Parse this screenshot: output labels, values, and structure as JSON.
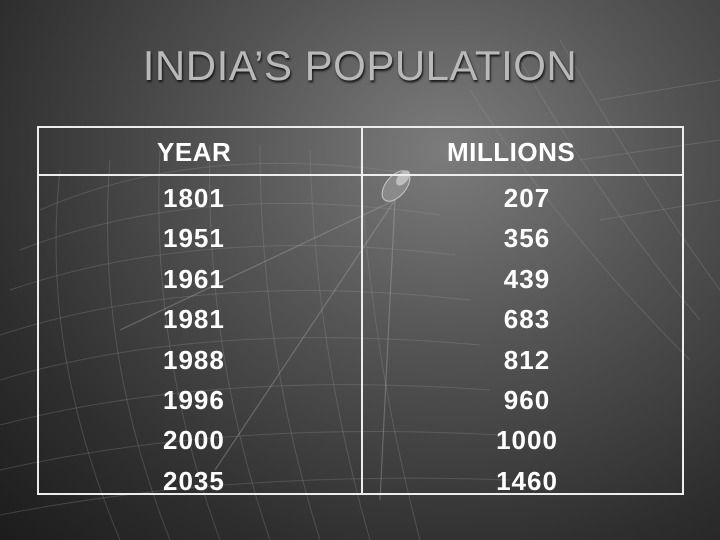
{
  "slide": {
    "title": "INDIA’S POPULATION"
  },
  "table": {
    "headers": {
      "year": "YEAR",
      "millions": "MILLIONS"
    },
    "rows": [
      {
        "year": "1801",
        "millions": "207"
      },
      {
        "year": "1951",
        "millions": "356"
      },
      {
        "year": "1961",
        "millions": "439"
      },
      {
        "year": "1981",
        "millions": "683"
      },
      {
        "year": "1988",
        "millions": "812"
      },
      {
        "year": "1996",
        "millions": "960"
      },
      {
        "year": "2000",
        "millions": "1000"
      },
      {
        "year": "2035",
        "millions": "1460"
      }
    ]
  },
  "colors": {
    "background_dark": "#1c1c1c",
    "background_light": "#7c7c7c",
    "title": "#b9b9b9",
    "table_text": "#ffffff",
    "table_border": "#ededed"
  }
}
